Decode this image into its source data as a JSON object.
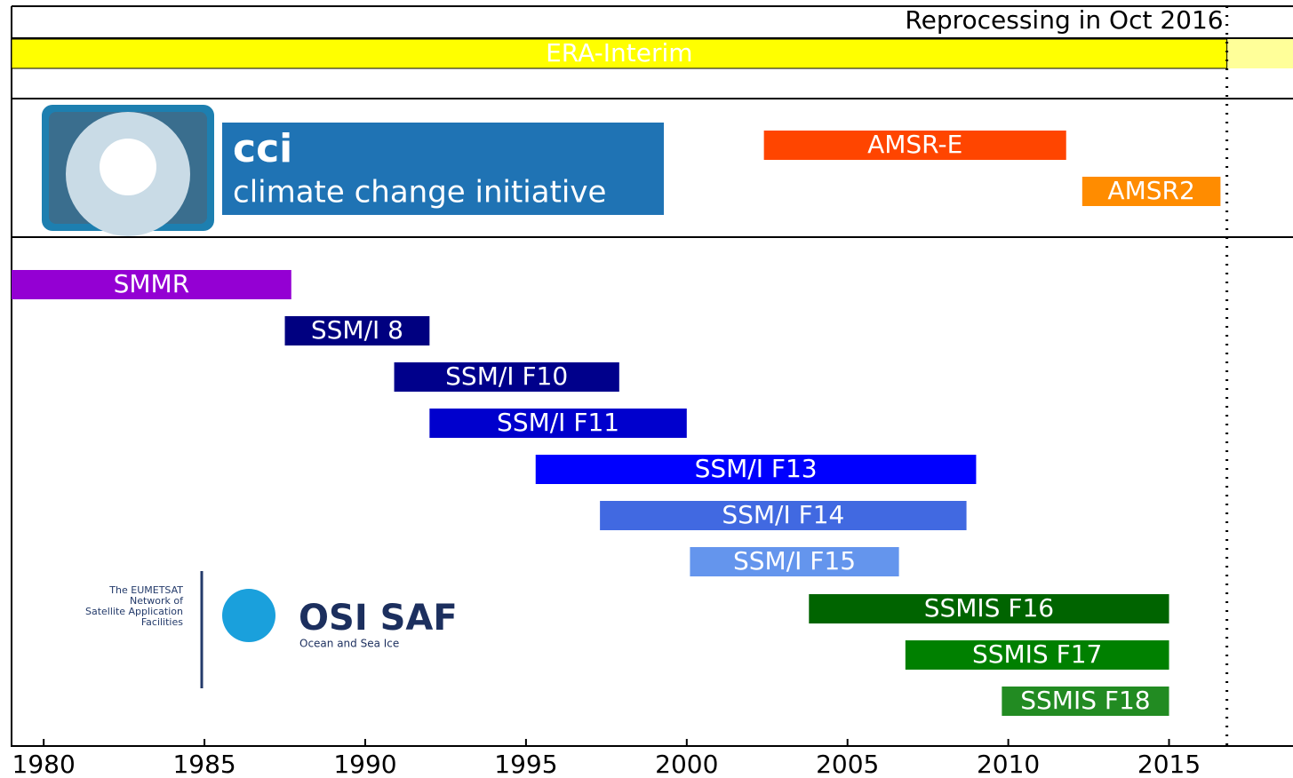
{
  "chart_data": {
    "type": "timeline",
    "annotation": "Reprocessing in Oct 2016",
    "annotation_x": 2016.8,
    "xlim": [
      1979,
      2018.8
    ],
    "xticks": [
      1980,
      1985,
      1990,
      1995,
      2000,
      2005,
      2010,
      2015
    ],
    "series": [
      {
        "name": "ERA-Interim",
        "color": "#ffff00",
        "values": [
          1979,
          2016.8
        ]
      },
      {
        "name": "AMSR-E",
        "color": "#ff4500",
        "values": [
          2002.4,
          2011.8
        ]
      },
      {
        "name": "AMSR2",
        "color": "#ff8c00",
        "values": [
          2012.3,
          2016.6
        ]
      },
      {
        "name": "SMMR",
        "color": "#9400d3",
        "values": [
          1979,
          1987.7
        ]
      },
      {
        "name": "SSM/I 8",
        "color": "#000080",
        "values": [
          1987.5,
          1992.0
        ]
      },
      {
        "name": "SSM/I F10",
        "color": "#00008b",
        "values": [
          1990.9,
          1997.9
        ]
      },
      {
        "name": "SSM/I F11",
        "color": "#0000cd",
        "values": [
          1992.0,
          2000.0
        ]
      },
      {
        "name": "SSM/I F13",
        "color": "#0000ff",
        "values": [
          1995.3,
          2009.0
        ]
      },
      {
        "name": "SSM/I F14",
        "color": "#4169e1",
        "values": [
          1997.3,
          2008.7
        ]
      },
      {
        "name": "SSM/I F15",
        "color": "#6495ed",
        "values": [
          2000.1,
          2006.6
        ]
      },
      {
        "name": "SSMIS F16",
        "color": "#006400",
        "values": [
          2003.8,
          2015.0
        ]
      },
      {
        "name": "SSMIS F17",
        "color": "#008000",
        "values": [
          2006.8,
          2015.0
        ]
      },
      {
        "name": "SSMIS F18",
        "color": "#228b22",
        "values": [
          2009.8,
          2015.0
        ]
      }
    ]
  },
  "logos": {
    "cci": {
      "title": "cci",
      "subtitle": "climate change initiative"
    },
    "osisaf": {
      "title": "OSI SAF",
      "subtitle": "Ocean and Sea Ice",
      "network": [
        "The EUMETSAT",
        "Network of",
        "Satellite Application",
        "Facilities"
      ]
    }
  }
}
